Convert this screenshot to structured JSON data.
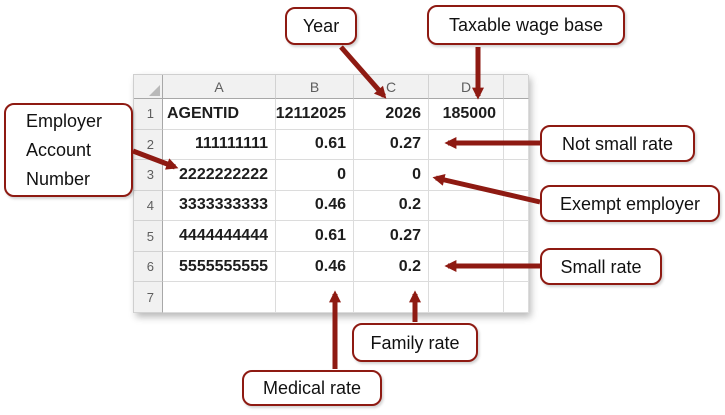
{
  "callouts": {
    "year": "Year",
    "taxable_wage_base": "Taxable wage base",
    "employer_account_number": "Employer Account Number",
    "not_small_rate": "Not small rate",
    "exempt_employer": "Exempt employer",
    "small_rate": "Small rate",
    "family_rate": "Family rate",
    "medical_rate": "Medical rate"
  },
  "spreadsheet": {
    "column_headers": [
      "A",
      "B",
      "C",
      "D"
    ],
    "rows": [
      {
        "n": "1",
        "cells": [
          "AGENTID",
          "12112025",
          "2026",
          "185000"
        ]
      },
      {
        "n": "2",
        "cells": [
          "111111111",
          "0.61",
          "0.27",
          ""
        ]
      },
      {
        "n": "3",
        "cells": [
          "2222222222",
          "0",
          "0",
          ""
        ]
      },
      {
        "n": "4",
        "cells": [
          "3333333333",
          "0.46",
          "0.2",
          ""
        ]
      },
      {
        "n": "5",
        "cells": [
          "4444444444",
          "0.61",
          "0.27",
          ""
        ]
      },
      {
        "n": "6",
        "cells": [
          "5555555555",
          "0.46",
          "0.2",
          ""
        ]
      },
      {
        "n": "7",
        "cells": [
          "",
          "",
          "",
          ""
        ]
      }
    ]
  },
  "colors": {
    "annotation_red": "#8e1a12"
  }
}
